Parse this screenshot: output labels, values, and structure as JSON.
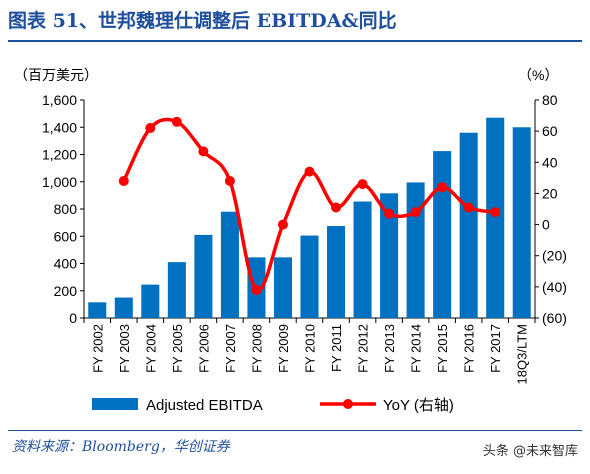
{
  "header": {
    "title": "图表 51、世邦魏理仕调整后 EBITDA&同比"
  },
  "footer": {
    "source": "资料来源：Bloomberg，华创证券",
    "watermark": "头条 @未来智库"
  },
  "chart_data": {
    "type": "bar",
    "categories": [
      "FY 2002",
      "FY 2003",
      "FY 2004",
      "FY 2005",
      "FY 2006",
      "FY 2007",
      "FY 2008",
      "FY 2009",
      "FY 2010",
      "FY 2011",
      "FY 2012",
      "FY 2013",
      "FY 2014",
      "FY 2015",
      "FY 2016",
      "FY 2017",
      "18Q3/LTM"
    ],
    "series": [
      {
        "name": "Adjusted EBITDA",
        "type": "bar",
        "axis": "left",
        "color": "#0070c0",
        "values": [
          115,
          150,
          245,
          410,
          610,
          780,
          445,
          445,
          605,
          675,
          855,
          915,
          995,
          1225,
          1360,
          1470,
          1400
        ]
      },
      {
        "name": "YoY (右轴)",
        "type": "line",
        "axis": "right",
        "color": "#ff0000",
        "values": [
          null,
          28,
          62,
          66,
          47,
          28,
          -42,
          0,
          34,
          11,
          26,
          7,
          8,
          24,
          11,
          8,
          null
        ]
      }
    ],
    "yunit_left": "（百万美元）",
    "yunit_right": "（%）",
    "ylim_left": [
      0,
      1600
    ],
    "yticks_left": [
      "0",
      "200",
      "400",
      "600",
      "800",
      "1,000",
      "1,200",
      "1,400",
      "1,600"
    ],
    "ylim_right": [
      -60,
      80
    ],
    "yticks_right": [
      "(60)",
      "(40)",
      "(20)",
      "0",
      "20",
      "40",
      "60",
      "80"
    ],
    "grid": false,
    "legend_position": "bottom"
  }
}
